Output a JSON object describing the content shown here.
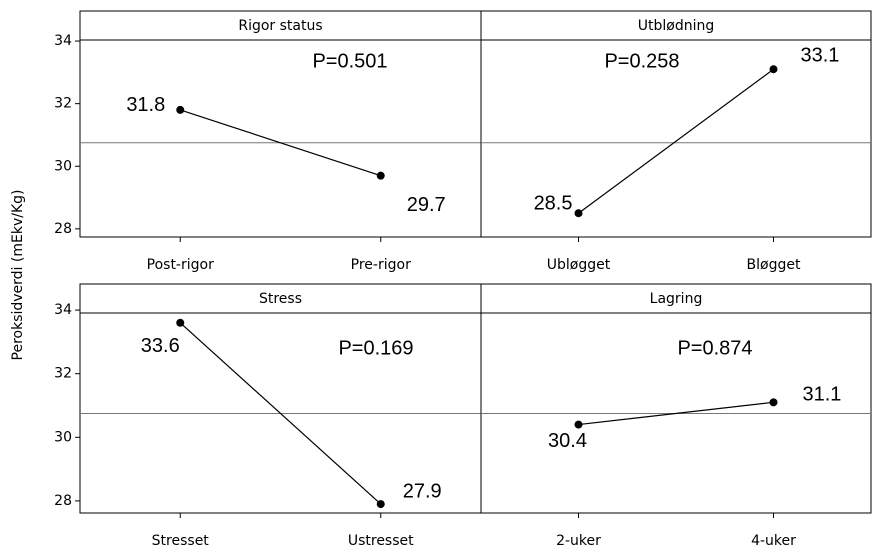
{
  "y_label": "Peroksidverdi (mEkv/Kg)",
  "chart_data": [
    {
      "type": "line",
      "title": "Rigor status",
      "categories": [
        "Post-rigor",
        "Pre-rigor"
      ],
      "values": [
        31.8,
        29.7
      ],
      "annotation": "P=0.501",
      "reference_line": 30.75,
      "ylim": [
        27.74,
        34.96
      ],
      "yticks": [
        28,
        30,
        32,
        34
      ],
      "color": "#000000"
    },
    {
      "type": "line",
      "title": "Utblødning",
      "categories": [
        "Ubløgget",
        "Bløgget"
      ],
      "values": [
        28.5,
        33.1
      ],
      "annotation": "P=0.258",
      "reference_line": 30.75,
      "ylim": [
        27.74,
        34.96
      ],
      "color": "#000000"
    },
    {
      "type": "line",
      "title": "Stress",
      "categories": [
        "Stresset",
        "Ustresset"
      ],
      "values": [
        33.6,
        27.9
      ],
      "annotation": "P=0.169",
      "reference_line": 30.75,
      "ylim": [
        27.62,
        34.82
      ],
      "yticks": [
        28,
        30,
        32,
        34
      ],
      "color": "#000000"
    },
    {
      "type": "line",
      "title": "Lagring",
      "categories": [
        "2-uker",
        "4-uker"
      ],
      "values": [
        30.4,
        31.1
      ],
      "annotation": "P=0.874",
      "reference_line": 30.75,
      "ylim": [
        27.62,
        34.82
      ],
      "color": "#000000"
    }
  ]
}
